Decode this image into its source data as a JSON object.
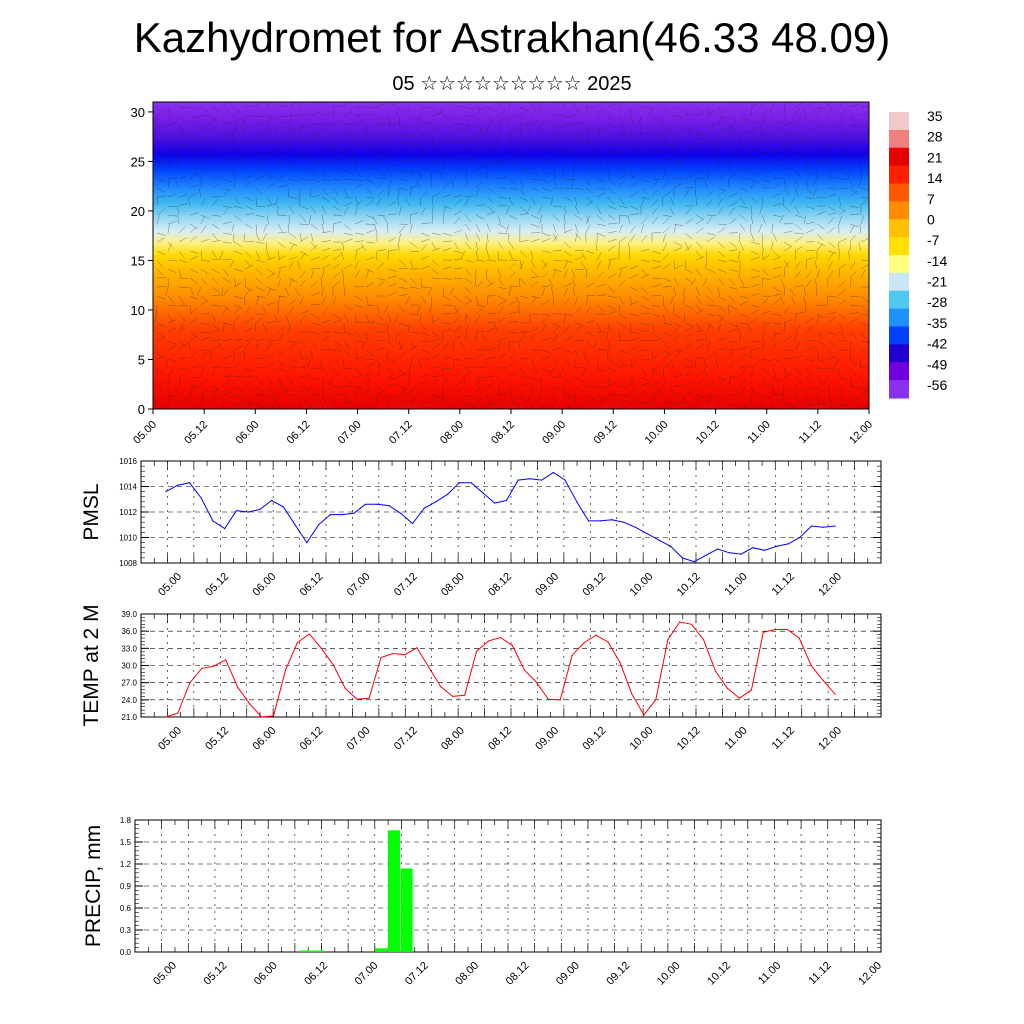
{
  "title": "Kazhydromet for Astrakhan(46.33 48.09)",
  "subtitle": "05 ☆☆☆☆☆☆☆☆☆ 2025",
  "chart_data": [
    {
      "type": "heatmap",
      "yticks": [
        "0",
        "5",
        "10",
        "15",
        "20",
        "25",
        "30"
      ],
      "ylim": [
        0,
        31
      ],
      "xticks": [
        "05.00",
        "05.12",
        "06.00",
        "06.12",
        "07.00",
        "07.12",
        "08.00",
        "08.12",
        "09.00",
        "09.12",
        "10.00",
        "10.12",
        "11.00",
        "11.12",
        "12.00"
      ],
      "colorbar": [
        "35",
        "28",
        "21",
        "14",
        "7",
        "0",
        "-7",
        "-14",
        "-21",
        "-28",
        "-35",
        "-42",
        "-49",
        "-56"
      ],
      "colors": {
        "cbar": [
          "#f2c9c9",
          "#f08080",
          "#e60000",
          "#ff2000",
          "#ff5a00",
          "#ff8c00",
          "#ffc000",
          "#ffe000",
          "#ffff80",
          "#c8e6f5",
          "#50c8f0",
          "#1e90ff",
          "#0040ff",
          "#2000d0",
          "#7000e0",
          "#8a30ee"
        ]
      }
    },
    {
      "type": "line",
      "ylabel": "PMSL",
      "ylim": [
        1008,
        1016
      ],
      "yticks": [
        "1016",
        "1014",
        "1012",
        "1010",
        "1008"
      ],
      "xticks": [
        "05.00",
        "05.12",
        "06.00",
        "06.12",
        "07.00",
        "07.12",
        "08.00",
        "08.12",
        "09.00",
        "09.12",
        "10.00",
        "10.12",
        "11.00",
        "11.12",
        "12.00"
      ],
      "color": "#0000ff",
      "values": [
        1013.6,
        1014.1,
        1014.3,
        1013.1,
        1011.3,
        1010.7,
        1012.1,
        1012.0,
        1012.2,
        1012.9,
        1012.4,
        1011.0,
        1009.6,
        1011.0,
        1011.8,
        1011.8,
        1011.9,
        1012.6,
        1012.6,
        1012.5,
        1011.9,
        1011.1,
        1012.3,
        1012.8,
        1013.4,
        1014.3,
        1014.3,
        1013.5,
        1012.7,
        1012.9,
        1014.5,
        1014.6,
        1014.5,
        1015.1,
        1014.5,
        1012.8,
        1011.3,
        1011.3,
        1011.4,
        1011.2,
        1010.8,
        1010.3,
        1009.8,
        1009.3,
        1008.4,
        1008.1,
        1008.6,
        1009.1,
        1008.8,
        1008.7,
        1009.2,
        1009.0,
        1009.3,
        1009.5,
        1010.0,
        1010.9,
        1010.8,
        1010.9
      ]
    },
    {
      "type": "line",
      "ylabel": "TEMP at 2 M",
      "ylim": [
        21,
        39
      ],
      "yticks": [
        "39.0",
        "36.0",
        "33.0",
        "30.0",
        "27.0",
        "24.0",
        "21.0"
      ],
      "xticks": [
        "05.00",
        "05.12",
        "06.00",
        "06.12",
        "07.00",
        "07.12",
        "08.00",
        "08.12",
        "09.00",
        "09.12",
        "10.00",
        "10.12",
        "11.00",
        "11.12",
        "12.00"
      ],
      "color": "#ff0000",
      "values": [
        21.0,
        21.7,
        27.0,
        29.5,
        29.9,
        31.0,
        26.2,
        23.3,
        21.0,
        21.2,
        29.2,
        34.0,
        35.5,
        33.0,
        30.1,
        26.0,
        24.1,
        24.3,
        31.4,
        32.1,
        31.9,
        33.1,
        29.7,
        26.3,
        24.6,
        24.8,
        32.5,
        34.3,
        34.9,
        33.5,
        29.2,
        27.1,
        24.1,
        24.0,
        31.8,
        34.0,
        35.3,
        34.1,
        30.5,
        25.0,
        21.4,
        24.0,
        34.5,
        37.6,
        37.2,
        34.5,
        29.0,
        26.0,
        24.3,
        25.7,
        35.8,
        36.3,
        36.3,
        34.8,
        30.0,
        27.4,
        25.0
      ]
    },
    {
      "type": "bar",
      "ylabel": "PRECIP, mm",
      "ylim": [
        0,
        1.8
      ],
      "yticks": [
        "1.8",
        "1.5",
        "1.2",
        "0.9",
        "0.6",
        "0.3",
        "0.0"
      ],
      "xticks": [
        "05.00",
        "05.12",
        "06.00",
        "06.12",
        "07.00",
        "07.12",
        "08.00",
        "08.12",
        "09.00",
        "09.12",
        "10.00",
        "10.12",
        "11.00",
        "11.12",
        "12.00"
      ],
      "color": "#00ff00",
      "values": [
        0,
        0,
        0,
        0,
        0,
        0,
        0,
        0,
        0,
        0,
        0,
        0,
        0,
        0.02,
        0.02,
        0,
        0,
        0,
        0,
        0.05,
        1.66,
        1.14,
        0,
        0,
        0,
        0,
        0,
        0,
        0,
        0,
        0,
        0,
        0,
        0,
        0,
        0,
        0,
        0,
        0,
        0,
        0,
        0,
        0,
        0,
        0,
        0,
        0,
        0,
        0,
        0,
        0,
        0,
        0,
        0,
        0,
        0,
        0,
        0,
        0
      ]
    }
  ]
}
